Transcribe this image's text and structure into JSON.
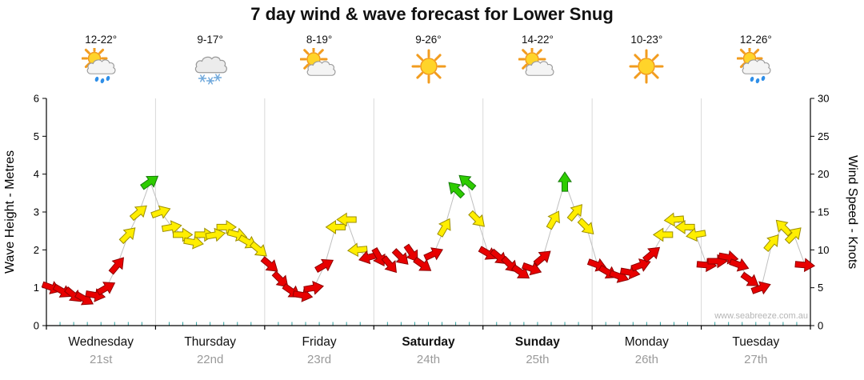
{
  "title": "7 day wind & wave forecast for Lower Snug",
  "watermark": "www.seabreeze.com.au",
  "chart_data": {
    "type": "wind-arrow-timeseries",
    "title": "7 day wind & wave forecast for Lower Snug",
    "left_axis": {
      "label": "Wave Height - Metres",
      "min": 0,
      "max": 6,
      "ticks": [
        0,
        1,
        2,
        3,
        4,
        5,
        6
      ]
    },
    "right_axis": {
      "label": "Wind Speed - Knots",
      "min": 0,
      "max": 30,
      "ticks": [
        0,
        5,
        10,
        15,
        20,
        25,
        30
      ]
    },
    "grid": "day-separators",
    "speed_color_scale": [
      {
        "max_knots": 10,
        "color": "#e80000",
        "name": "light"
      },
      {
        "max_knots": 16,
        "color": "#ffee00",
        "name": "moderate"
      },
      {
        "max_knots": 30,
        "color": "#2ecc00",
        "name": "fresh"
      }
    ],
    "days": [
      {
        "name": "Wednesday",
        "date": "21st",
        "temp": "12-22°",
        "icon": "sun-cloud-rain",
        "weekend": false,
        "wind_knots": [
          5,
          4.5,
          4,
          3.5,
          4,
          5,
          8,
          12,
          15,
          19
        ],
        "wind_dir_deg": [
          20,
          30,
          40,
          30,
          10,
          -30,
          -50,
          -45,
          -40,
          -35
        ]
      },
      {
        "name": "Thursday",
        "date": "22nd",
        "temp": "9-17°",
        "icon": "cloud-snow",
        "weekend": false,
        "wind_knots": [
          15,
          13,
          12,
          11,
          12,
          12,
          13,
          12,
          11,
          10
        ],
        "wind_dir_deg": [
          -20,
          -10,
          0,
          10,
          0,
          -10,
          0,
          15,
          30,
          40
        ]
      },
      {
        "name": "Friday",
        "date": "23rd",
        "temp": "8-19°",
        "icon": "sun-cloud",
        "weekend": false,
        "wind_knots": [
          8,
          6,
          4.5,
          4,
          5,
          8,
          13,
          14,
          10,
          9
        ],
        "wind_dir_deg": [
          40,
          45,
          35,
          10,
          -10,
          -30,
          180,
          180,
          175,
          165
        ]
      },
      {
        "name": "Saturday",
        "date": "24th",
        "temp": "9-26°",
        "icon": "sun",
        "weekend": true,
        "wind_knots": [
          9,
          8,
          9,
          9.5,
          8,
          9.5,
          13,
          18,
          19,
          14
        ],
        "wind_dir_deg": [
          60,
          50,
          45,
          55,
          35,
          -25,
          -60,
          -135,
          -140,
          45
        ]
      },
      {
        "name": "Sunday",
        "date": "25th",
        "temp": "14-22°",
        "icon": "sun-cloud",
        "weekend": true,
        "wind_knots": [
          9.5,
          9,
          8,
          7,
          7.5,
          9,
          14,
          19,
          15,
          13
        ],
        "wind_dir_deg": [
          30,
          40,
          45,
          35,
          20,
          -40,
          -60,
          -90,
          -50,
          45
        ]
      },
      {
        "name": "Monday",
        "date": "26th",
        "temp": "10-23°",
        "icon": "sun",
        "weekend": false,
        "wind_knots": [
          8,
          7,
          6.5,
          7,
          8,
          9.5,
          12,
          14,
          13,
          12
        ],
        "wind_dir_deg": [
          20,
          30,
          20,
          10,
          -20,
          -40,
          180,
          175,
          180,
          170
        ]
      },
      {
        "name": "Tuesday",
        "date": "27th",
        "temp": "12-26°",
        "icon": "sun-cloud-rain",
        "weekend": false,
        "wind_knots": [
          8,
          8.5,
          9,
          8,
          6,
          5,
          11,
          13,
          12,
          8
        ],
        "wind_dir_deg": [
          5,
          0,
          10,
          20,
          35,
          -20,
          -50,
          -135,
          -45,
          5
        ]
      }
    ]
  }
}
